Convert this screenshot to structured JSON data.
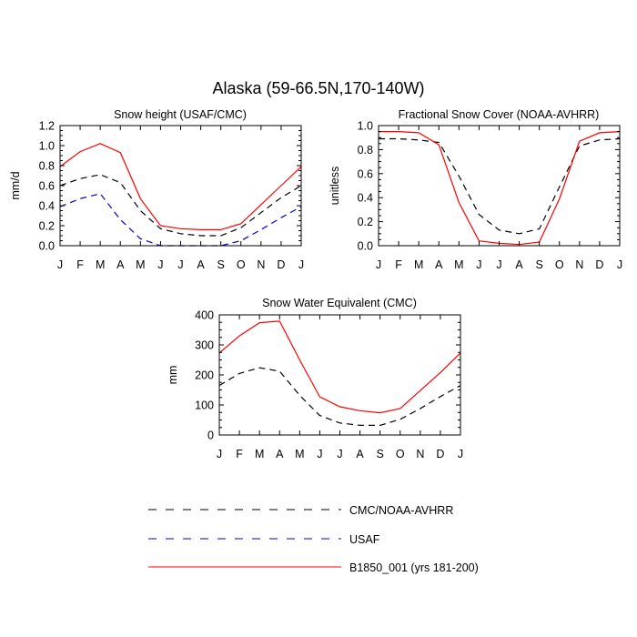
{
  "figure_title": "Alaska (59-66.5N,170-140W)",
  "legend": [
    {
      "name": "CMC/NOAA-AVHRR",
      "color": "#000000",
      "dash": "dashed"
    },
    {
      "name": "USAF",
      "color": "#0000cc",
      "dash": "dashed"
    },
    {
      "name": "B1850_001 (yrs 181-200)",
      "color": "#ff0000",
      "dash": "solid"
    }
  ],
  "chart_data": [
    {
      "type": "line",
      "title": "Snow height (USAF/CMC)",
      "xlabel": "",
      "ylabel": "mm/d",
      "x": [
        "J",
        "F",
        "M",
        "A",
        "M",
        "J",
        "J",
        "A",
        "S",
        "O",
        "N",
        "D",
        "J"
      ],
      "ylim": [
        0,
        1.2
      ],
      "yticks": [
        0.0,
        0.2,
        0.4,
        0.6,
        0.8,
        1.0,
        1.2
      ],
      "ytick_labels": [
        "0.0",
        "0.2",
        "0.4",
        "0.6",
        "0.8",
        "1.0",
        "1.2"
      ],
      "series": [
        {
          "name": "CMC/NOAA-AVHRR",
          "values": [
            0.6,
            0.67,
            0.71,
            0.63,
            0.35,
            0.17,
            0.12,
            0.1,
            0.1,
            0.18,
            0.33,
            0.48,
            0.6
          ]
        },
        {
          "name": "USAF",
          "values": [
            0.39,
            0.47,
            0.52,
            0.26,
            0.07,
            0.0,
            0.0,
            0.0,
            0.0,
            0.05,
            0.16,
            0.28,
            0.39
          ]
        },
        {
          "name": "B1850_001 (yrs 181-200)",
          "values": [
            0.79,
            0.94,
            1.02,
            0.93,
            0.47,
            0.2,
            0.17,
            0.16,
            0.16,
            0.22,
            0.41,
            0.6,
            0.79
          ]
        }
      ],
      "grid": false
    },
    {
      "type": "line",
      "title": "Fractional Snow Cover (NOAA-AVHRR)",
      "xlabel": "",
      "ylabel": "unitless",
      "x": [
        "J",
        "F",
        "M",
        "A",
        "M",
        "J",
        "J",
        "A",
        "S",
        "O",
        "N",
        "D",
        "J"
      ],
      "ylim": [
        0,
        1.0
      ],
      "yticks": [
        0.0,
        0.2,
        0.4,
        0.6,
        0.8,
        1.0
      ],
      "ytick_labels": [
        "0.0",
        "0.2",
        "0.4",
        "0.6",
        "0.8",
        "1.0"
      ],
      "series": [
        {
          "name": "CMC/NOAA-AVHRR",
          "values": [
            0.89,
            0.89,
            0.88,
            0.86,
            0.58,
            0.26,
            0.13,
            0.1,
            0.14,
            0.49,
            0.83,
            0.88,
            0.89
          ]
        },
        {
          "name": "B1850_001 (yrs 181-200)",
          "values": [
            0.95,
            0.95,
            0.94,
            0.84,
            0.36,
            0.04,
            0.02,
            0.01,
            0.03,
            0.39,
            0.87,
            0.94,
            0.95
          ]
        }
      ],
      "grid": false
    },
    {
      "type": "line",
      "title": "Snow Water Equivalent (CMC)",
      "xlabel": "",
      "ylabel": "mm",
      "x": [
        "J",
        "F",
        "M",
        "A",
        "M",
        "J",
        "J",
        "A",
        "S",
        "O",
        "N",
        "D",
        "J"
      ],
      "ylim": [
        0,
        400
      ],
      "yticks": [
        0,
        100,
        200,
        300,
        400
      ],
      "ytick_labels": [
        "0",
        "100",
        "200",
        "300",
        "400"
      ],
      "series": [
        {
          "name": "CMC/NOAA-AVHRR",
          "values": [
            165,
            205,
            224,
            212,
            132,
            65,
            40,
            32,
            32,
            52,
            88,
            128,
            165
          ]
        },
        {
          "name": "B1850_001 (yrs 181-200)",
          "values": [
            273,
            330,
            374,
            379,
            250,
            127,
            94,
            81,
            74,
            88,
            148,
            208,
            273
          ]
        }
      ],
      "grid": false
    }
  ]
}
